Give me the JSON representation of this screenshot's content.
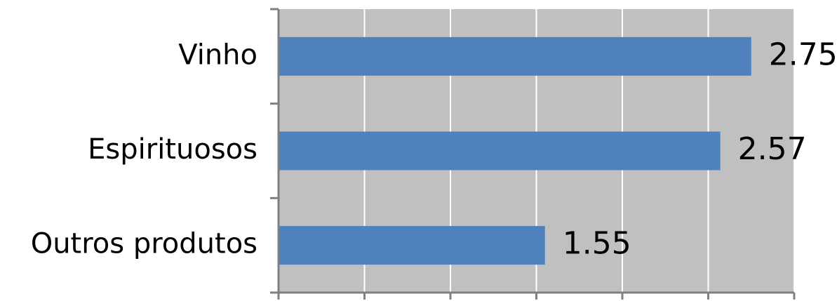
{
  "chart_data": {
    "type": "bar",
    "orientation": "horizontal",
    "categories": [
      "Vinho",
      "Espirituosos",
      "Outros produtos"
    ],
    "values": [
      2.75,
      2.57,
      1.55
    ],
    "data_labels": [
      "2.75",
      "2.57",
      "1.55"
    ],
    "xlim": [
      0,
      3
    ],
    "x_gridline_step": 0.5,
    "grid": true,
    "title": "",
    "xlabel": "",
    "ylabel": "",
    "legend": "none"
  },
  "colors": {
    "bar": "#4F81BD",
    "plot_background": "#C0C0C0",
    "gridline": "#FFFFFF",
    "axis": "#808080"
  }
}
